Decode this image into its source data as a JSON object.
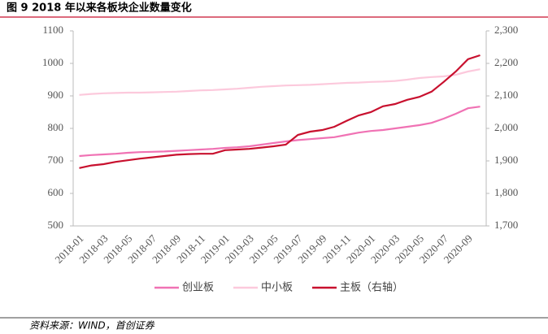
{
  "chart_data": {
    "type": "line",
    "title": "图 9 2018 年以来各板块企业数量变化",
    "source": "资料来源：WIND，首创证券",
    "categories": [
      "2018-01",
      null,
      "2018-03",
      null,
      "2018-05",
      null,
      "2018-07",
      null,
      "2018-09",
      null,
      "2018-11",
      null,
      "2019-01",
      null,
      "2019-03",
      null,
      "2019-05",
      null,
      "2019-07",
      null,
      "2019-09",
      null,
      "2019-11",
      null,
      "2020-01",
      null,
      "2020-03",
      null,
      "2020-05",
      null,
      "2020-07",
      null,
      "2020-09",
      null
    ],
    "series": [
      {
        "name": "创业板",
        "color": "#f072b4",
        "values": [
          715,
          718,
          720,
          722,
          725,
          727,
          728,
          729,
          731,
          733,
          735,
          737,
          740,
          742,
          745,
          750,
          755,
          760,
          764,
          767,
          770,
          773,
          780,
          787,
          792,
          795,
          800,
          805,
          810,
          817,
          830,
          845,
          862,
          867
        ]
      },
      {
        "name": "中小板",
        "color": "#fcc9dc",
        "values": [
          903,
          906,
          908,
          909,
          910,
          910,
          911,
          912,
          913,
          915,
          917,
          918,
          920,
          922,
          925,
          928,
          930,
          932,
          933,
          934,
          936,
          938,
          940,
          941,
          943,
          944,
          946,
          950,
          955,
          958,
          960,
          965,
          975,
          982
        ]
      },
      {
        "name": "主板（右轴）",
        "color": "#c8102e",
        "axis": "y2",
        "values": [
          1878,
          1886,
          1890,
          1897,
          1902,
          1907,
          1911,
          1915,
          1919,
          1921,
          1922,
          1922,
          1933,
          1935,
          1937,
          1941,
          1945,
          1950,
          1980,
          1990,
          1995,
          2005,
          2023,
          2040,
          2050,
          2068,
          2075,
          2088,
          2097,
          2113,
          2143,
          2175,
          2213,
          2225
        ]
      }
    ],
    "ylim": [
      500,
      1100
    ],
    "yticks": [
      500,
      600,
      700,
      800,
      900,
      1000,
      1100
    ],
    "y2lim": [
      1700,
      2300
    ],
    "y2ticks": [
      {
        "value": 1700,
        "label": "1,700"
      },
      {
        "value": 1800,
        "label": "1,800"
      },
      {
        "value": 1900,
        "label": "1,900"
      },
      {
        "value": 2000,
        "label": "2,000"
      },
      {
        "value": 2100,
        "label": "2,100"
      },
      {
        "value": 2200,
        "label": "2,200"
      },
      {
        "value": 2300,
        "label": "2,300"
      }
    ],
    "grid": false
  }
}
